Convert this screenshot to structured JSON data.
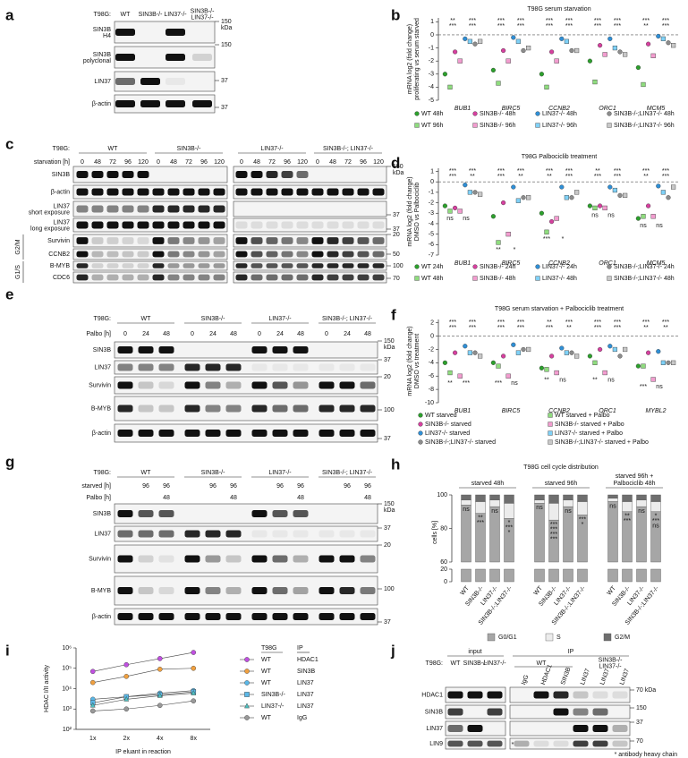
{
  "blots": {
    "a": {
      "panel": "a",
      "header": "T98G:",
      "lanes": [
        "WT",
        "SIN3B-/-",
        "LIN37-/-",
        [
          "SIN3B-/-",
          "LIN37-/-"
        ]
      ],
      "rows": [
        {
          "label": "SIN3B",
          "sub": "H4"
        },
        {
          "label": "SIN3B",
          "sub": "polyclonal"
        },
        {
          "label": "LIN37"
        },
        {
          "label": "β-actin"
        }
      ],
      "markers": [
        "150",
        "kDa",
        "150",
        "37",
        "37"
      ]
    },
    "c": {
      "panel": "c",
      "header": "T98G:",
      "groups": [
        "WT",
        "SIN3B-/-",
        "LIN37-/-",
        "SIN3B-/-; LIN37-/-"
      ],
      "lane_title": "starvation [h]",
      "lanes": [
        0,
        48,
        72,
        96,
        120,
        0,
        48,
        72,
        96,
        120,
        0,
        48,
        72,
        96,
        120,
        0,
        48,
        72,
        96,
        120
      ],
      "rows": [
        {
          "label": "SIN3B"
        },
        {
          "label": "β-actin"
        },
        {
          "label": "LIN37",
          "sub": "short exposure"
        },
        {
          "label": "LIN37",
          "sub": "long exposure"
        },
        {
          "label": "Survivin"
        },
        {
          "label": "CCNB2"
        },
        {
          "label": "B-MYB"
        },
        {
          "label": "CDC6"
        }
      ],
      "row_groups": [
        "G2/M",
        "G1/S"
      ],
      "markers": [
        "150",
        "kDa",
        "37",
        "37",
        "20",
        "50",
        "100",
        "70"
      ]
    },
    "e": {
      "panel": "e",
      "header": "T98G:",
      "groups": [
        "WT",
        "SIN3B-/-",
        "LIN37-/-",
        "SIN3B-/-; LIN37-/-"
      ],
      "lane_title": "Palbo [h]",
      "lanes": [
        0,
        24,
        48,
        0,
        24,
        48,
        0,
        24,
        48,
        0,
        24,
        48
      ],
      "rows": [
        {
          "label": "SIN3B"
        },
        {
          "label": "LIN37"
        },
        {
          "label": "Survivin"
        },
        {
          "label": "B-MYB"
        },
        {
          "label": "β-actin"
        }
      ],
      "markers": [
        "150",
        "kDa",
        "37",
        "20",
        "100",
        "37"
      ]
    },
    "g": {
      "panel": "g",
      "header": "T98G:",
      "groups": [
        "WT",
        "SIN3B-/-",
        "LIN37-/-",
        "SIN3B-/-; LIN37-/-"
      ],
      "lane_titles": [
        "starved [h]",
        "Palbo [h]"
      ],
      "lane_rows": [
        [
          null,
          96,
          96,
          null,
          96,
          96,
          null,
          96,
          96,
          null,
          96,
          96
        ],
        [
          null,
          null,
          48,
          null,
          null,
          48,
          null,
          null,
          48,
          null,
          null,
          48
        ]
      ],
      "rows": [
        {
          "label": "SIN3B"
        },
        {
          "label": "LIN37"
        },
        {
          "label": "Survivin"
        },
        {
          "label": "B-MYB"
        },
        {
          "label": "β-actin"
        }
      ],
      "markers": [
        "150",
        "kDa",
        "37",
        "20",
        "100",
        "37"
      ]
    },
    "j": {
      "panel": "j",
      "header": "T98G:",
      "sections": [
        "input",
        "IP"
      ],
      "input_lanes": [
        "WT",
        "SIN3B-/-",
        "LIN37-/-"
      ],
      "ip_groups": [
        "WT",
        [
          "SIN3B-/-",
          "LIN37-/-"
        ]
      ],
      "ip_lanes": [
        "IgG",
        "HDAC1",
        "SIN3B",
        "LIN37",
        "LIN37",
        "LIN37"
      ],
      "rows": [
        {
          "label": "HDAC1"
        },
        {
          "label": "SIN3B"
        },
        {
          "label": "LIN37"
        },
        {
          "label": "LIN9"
        }
      ],
      "markers": [
        "70 kDa",
        "150",
        "37",
        "70"
      ],
      "asterisk": "*",
      "footnote": "* antibody heavy chain"
    }
  },
  "chart_data": [
    {
      "type": "dot",
      "panel": "b",
      "title": "T98G serum starvation",
      "ylabel": [
        "mRNA log2 (fold change)",
        "proliferating vs serum starved"
      ],
      "categories": [
        "BUB1",
        "BIRC5",
        "CCNB2",
        "ORC1",
        "MCM5"
      ],
      "ylim": [
        -5,
        1.3
      ],
      "yticks": [
        1,
        0,
        -1,
        -2,
        -3,
        -4,
        -5
      ],
      "zero_line": true,
      "legend_columns": 4,
      "series": [
        {
          "name": "WT 48h",
          "color": "#2ca02c",
          "marker": "circle",
          "values": [
            -3.0,
            -2.7,
            -3.0,
            -2.0,
            -2.5
          ]
        },
        {
          "name": "WT 96h",
          "color": "#8fdc7e",
          "marker": "square",
          "values": [
            -4.0,
            -3.7,
            -4.0,
            -3.6,
            -3.8
          ]
        },
        {
          "name": "SIN3B-/- 48h",
          "color": "#d6409f",
          "marker": "circle",
          "values": [
            -1.3,
            -1.2,
            -1.3,
            -0.8,
            -0.7
          ]
        },
        {
          "name": "SIN3B-/- 96h",
          "color": "#f29ccf",
          "marker": "square",
          "values": [
            -2.0,
            -2.0,
            -2.0,
            -1.5,
            -1.6
          ]
        },
        {
          "name": "LIN37-/- 48h",
          "color": "#2f8fd6",
          "marker": "circle",
          "values": [
            -0.3,
            -0.2,
            -0.3,
            -0.3,
            -0.1
          ]
        },
        {
          "name": "LIN37-/- 96h",
          "color": "#7fd1f7",
          "marker": "square",
          "values": [
            -0.5,
            -0.5,
            -0.5,
            -1.0,
            -0.3
          ]
        },
        {
          "name": "SIN3B-/-;LIN37-/- 48h",
          "color": "#8c8c8c",
          "marker": "circle",
          "values": [
            -0.7,
            -1.2,
            -1.2,
            -1.3,
            -0.6
          ]
        },
        {
          "name": "SIN3B-/-;LIN37-/- 96h",
          "color": "#c8c8c8",
          "marker": "square",
          "values": [
            -0.5,
            -1.0,
            -1.2,
            -1.5,
            -0.8
          ]
        }
      ],
      "annotations": [
        [
          "**",
          "***",
          "***",
          "***"
        ],
        [
          "***",
          "***",
          "***",
          "***"
        ],
        [
          "***",
          "***",
          "***",
          "***"
        ],
        [
          "***",
          "***",
          "***",
          "***"
        ],
        [
          "***",
          "***",
          "**",
          "***"
        ]
      ]
    },
    {
      "type": "dot",
      "panel": "d",
      "title": "T98G Palbociclib treatment",
      "ylabel": [
        "mRNA log2 (fold change)",
        "DMSO vs Palbociclib"
      ],
      "categories": [
        "BUB1",
        "BIRC5",
        "CCNB2",
        "ORC1",
        "MCM5"
      ],
      "ylim": [
        -7,
        1.3
      ],
      "yticks": [
        1,
        0,
        -1,
        -2,
        -3,
        -4,
        -5,
        -6,
        -7
      ],
      "zero_line": true,
      "legend_columns": 4,
      "series": [
        {
          "name": "WT 24h",
          "color": "#2ca02c",
          "marker": "circle",
          "values": [
            -2.3,
            -3.3,
            -3.0,
            -2.3,
            -3.5
          ]
        },
        {
          "name": "WT 48h",
          "color": "#8fdc7e",
          "marker": "square",
          "values": [
            -2.8,
            -5.8,
            -4.8,
            -2.5,
            -3.3
          ]
        },
        {
          "name": "SIN3B-/- 24h",
          "color": "#d6409f",
          "marker": "circle",
          "values": [
            -2.5,
            -2.0,
            -3.8,
            -2.3,
            -2.3
          ]
        },
        {
          "name": "SIN3B-/- 48h",
          "color": "#f29ccf",
          "marker": "square",
          "values": [
            -2.8,
            -5.0,
            -3.5,
            -2.5,
            -3.3
          ]
        },
        {
          "name": "LIN37-/- 24h",
          "color": "#2f8fd6",
          "marker": "circle",
          "values": [
            -0.3,
            -0.5,
            -0.5,
            -0.5,
            -0.4
          ]
        },
        {
          "name": "LIN37-/- 48h",
          "color": "#7fd1f7",
          "marker": "square",
          "values": [
            -1.0,
            -1.8,
            -1.5,
            -0.8,
            -1.0
          ]
        },
        {
          "name": "SIN3B-/-;LIN37-/- 24h",
          "color": "#8c8c8c",
          "marker": "circle",
          "values": [
            -1.0,
            -1.5,
            -1.5,
            -1.3,
            -1.5
          ]
        },
        {
          "name": "SIN3B-/-;LIN37-/- 48h",
          "color": "#c8c8c8",
          "marker": "square",
          "values": [
            -1.2,
            -1.5,
            -1.0,
            -1.3,
            -0.5
          ]
        }
      ],
      "annotations": [
        [
          "***",
          "***",
          "***",
          "**"
        ],
        [
          "***",
          "***",
          "***",
          "**"
        ],
        [
          "***",
          "***",
          "**",
          "***"
        ],
        [
          "**",
          "***",
          "***",
          "***"
        ],
        [
          "***",
          "***",
          "**",
          "***"
        ]
      ],
      "annotations_below": [
        [
          "ns",
          "ns"
        ],
        [
          "**",
          "*"
        ],
        [
          "***",
          "*"
        ],
        [
          "ns",
          "ns"
        ],
        [
          "ns",
          "ns"
        ]
      ]
    },
    {
      "type": "dot",
      "panel": "f",
      "title": "T98G serum starvation + Palbociclib treatment",
      "ylabel": [
        "mRNA log2 (fold change)",
        "DMSO vs treatment"
      ],
      "categories": [
        "BUB1",
        "BIRC5",
        "CCNB2",
        "ORC1",
        "MYBL2"
      ],
      "ylim": [
        -10,
        2.5
      ],
      "yticks": [
        2,
        0,
        -2,
        -4,
        -6,
        -8,
        -10
      ],
      "zero_line": true,
      "legend_columns": 2,
      "series": [
        {
          "name": "WT starved",
          "color": "#2ca02c",
          "marker": "circle",
          "values": [
            -4,
            -4,
            -4.8,
            -3,
            -4.5
          ]
        },
        {
          "name": "WT starved + Palbo",
          "color": "#8fdc7e",
          "marker": "square",
          "values": [
            -5.5,
            -4.5,
            -5,
            -4,
            -4.5
          ]
        },
        {
          "name": "SIN3B-/- starved",
          "color": "#d6409f",
          "marker": "circle",
          "values": [
            -2.5,
            -3,
            -3,
            -2,
            -2.5
          ]
        },
        {
          "name": "SIN3B-/- starved + Palbo",
          "color": "#f29ccf",
          "marker": "square",
          "values": [
            -6,
            -6,
            -5.5,
            -5.5,
            -6.5
          ]
        },
        {
          "name": "LIN37-/- starved",
          "color": "#2f8fd6",
          "marker": "circle",
          "values": [
            -1.5,
            -1.3,
            -1.8,
            -1.5,
            -2.3
          ]
        },
        {
          "name": "LIN37-/- starved + Palbo",
          "color": "#7fd1f7",
          "marker": "square",
          "values": [
            -2.5,
            -2.5,
            -2.5,
            -2,
            -4
          ]
        },
        {
          "name": "SIN3B-/-;LIN37-/- starved",
          "color": "#8c8c8c",
          "marker": "circle",
          "values": [
            -2.5,
            -2,
            -2.5,
            -3,
            -4
          ]
        },
        {
          "name": "SIN3B-/-;LIN37-/- starved + Palbo",
          "color": "#c8c8c8",
          "marker": "square",
          "values": [
            -3,
            -2,
            -3,
            -2,
            -4
          ]
        }
      ],
      "annotations": [
        [
          "***",
          "***",
          "***",
          "***"
        ],
        [
          "***",
          "***",
          "***",
          "***"
        ],
        [
          "**",
          "***",
          "***",
          "**"
        ],
        [
          "***",
          "***",
          "***",
          "***"
        ],
        [
          "***",
          "***",
          "**",
          "**"
        ]
      ],
      "annotations_below": [
        [
          "**",
          "***"
        ],
        [
          "***",
          "ns"
        ],
        [
          "**",
          "ns"
        ],
        [
          "**",
          "ns"
        ],
        [
          "***",
          "ns"
        ]
      ]
    },
    {
      "type": "stacked_bar",
      "panel": "h",
      "title": "T98G cell cycle distribution",
      "ylabel": "cells [%]",
      "groups": [
        [
          "starved 48h"
        ],
        [
          "starved 96h"
        ],
        [
          "starved 96h +",
          "Palbociclib 48h"
        ]
      ],
      "categories": [
        "WT",
        "SIN3B-/-",
        "LIN37-/-",
        "SIN3B-/-;LIN37-/-",
        "WT",
        "SIN3B-/-",
        "LIN37-/-",
        "SIN3B-/-;LIN37-/-",
        "WT",
        "SIN3B-/-",
        "LIN37-/-",
        "SIN3B-/-;LIN37-/-"
      ],
      "ylim": [
        0,
        100
      ],
      "ybreak": [
        20,
        60
      ],
      "yticks": [
        0,
        20,
        60,
        80,
        100
      ],
      "series": [
        {
          "name": "G0/G1",
          "color": "#a6a6a6",
          "values": [
            94,
            89,
            93,
            86,
            95,
            85,
            93,
            88,
            96,
            90,
            93,
            90
          ]
        },
        {
          "name": "S",
          "color": "#ececec",
          "values": [
            3,
            7,
            4,
            9,
            2,
            10,
            4,
            8,
            2,
            6,
            4,
            6
          ]
        },
        {
          "name": "G2/M",
          "color": "#6e6e6e",
          "values": [
            3,
            4,
            3,
            5,
            3,
            5,
            3,
            4,
            2,
            4,
            3,
            4
          ]
        }
      ],
      "annotations": [
        [
          "ns"
        ],
        [
          "**",
          "***"
        ],
        [
          "ns"
        ],
        [
          "*",
          "***",
          "*"
        ],
        [
          "ns"
        ],
        [
          "***",
          "***",
          "***",
          "***"
        ],
        [
          "ns"
        ],
        [
          "***",
          "*"
        ],
        [
          "ns"
        ],
        [
          "**",
          "***"
        ],
        [
          "ns"
        ],
        [
          "*",
          "***",
          "ns"
        ]
      ]
    },
    {
      "type": "line",
      "panel": "i",
      "ylabel": "HDAC I/II activity",
      "xlabel": "IP eluant in reaction",
      "categories": [
        "1x",
        "2x",
        "4x",
        "8x"
      ],
      "log_scale": true,
      "ylim": [
        100,
        1000000
      ],
      "yticks": [
        {
          "value": 100,
          "label": "10²"
        },
        {
          "value": 1000,
          "label": "10³"
        },
        {
          "value": 10000,
          "label": "10⁴"
        },
        {
          "value": 100000,
          "label": "10⁵"
        },
        {
          "value": 1000000,
          "label": "10⁶"
        }
      ],
      "legend_headers": [
        "T98G",
        "IP"
      ],
      "series": [
        {
          "t98g": "WT",
          "ip": "HDAC1",
          "color": "#c050e0",
          "marker": "circle",
          "values": [
            70000,
            150000,
            300000,
            600000
          ]
        },
        {
          "t98g": "WT",
          "ip": "SIN3B",
          "color": "#f0a040",
          "marker": "circle",
          "values": [
            20000,
            40000,
            90000,
            100000
          ]
        },
        {
          "t98g": "WT",
          "ip": "LIN37",
          "color": "#5bb8e8",
          "marker": "circle",
          "values": [
            3000,
            4000,
            6000,
            8000
          ]
        },
        {
          "t98g": "SIN3B-/-",
          "ip": "LIN37",
          "color": "#5bb8e8",
          "marker": "square",
          "values": [
            2000,
            4000,
            5000,
            7000
          ]
        },
        {
          "t98g": "LIN37-/-",
          "ip": "LIN37",
          "color": "#4fc0c0",
          "marker": "triangle",
          "values": [
            1500,
            3000,
            4500,
            6000
          ]
        },
        {
          "t98g": "WT",
          "ip": "IgG",
          "color": "#999999",
          "marker": "circle",
          "values": [
            800,
            1000,
            1500,
            2500
          ]
        }
      ]
    }
  ]
}
